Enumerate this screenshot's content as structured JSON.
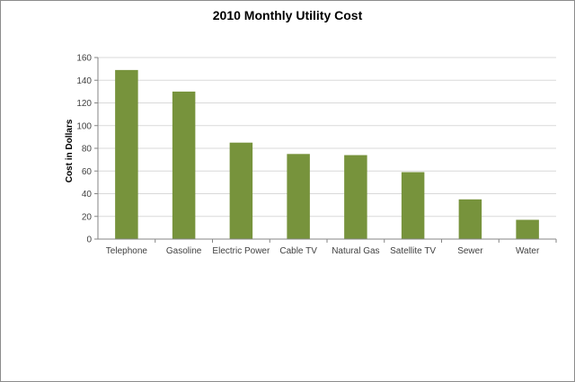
{
  "chart_data": {
    "type": "bar",
    "title": "2010 Monthly Utility Cost",
    "xlabel": "",
    "ylabel": "Cost in Dollars",
    "categories": [
      "Telephone",
      "Gasoline",
      "Electric Power",
      "Cable TV",
      "Natural Gas",
      "Satellite TV",
      "Sewer",
      "Water"
    ],
    "values": [
      149,
      130,
      85,
      75,
      74,
      59,
      35,
      17
    ],
    "ylim": [
      0,
      160
    ],
    "yticks": [
      0,
      20,
      40,
      60,
      80,
      100,
      120,
      140,
      160
    ],
    "grid": true,
    "legend": "none",
    "bar_color": "#77933c",
    "grid_color": "#d9d9d9"
  }
}
